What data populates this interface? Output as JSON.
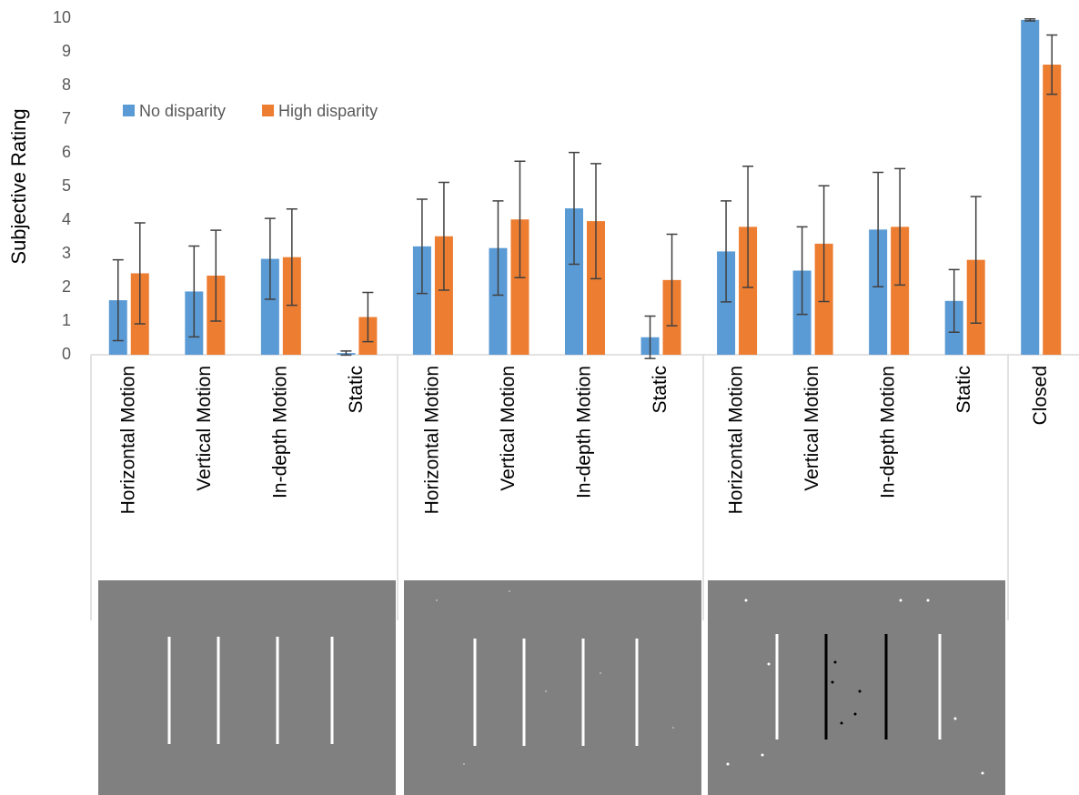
{
  "chart_data": {
    "type": "bar",
    "y_label": "Subjective Rating",
    "categories": [
      "Horizontal Motion",
      "Vertical Motion",
      "In-depth Motion",
      "Static",
      "Horizontal Motion",
      "Vertical Motion",
      "In-depth Motion",
      "Static",
      "Horizontal Motion",
      "Vertical Motion",
      "In-depth Motion",
      "Static",
      "Closed"
    ],
    "series": [
      {
        "name": "No disparity",
        "color": "#5b9bd5",
        "values": [
          1.62,
          1.88,
          2.85,
          0.05,
          3.22,
          3.17,
          4.35,
          0.52,
          3.07,
          2.5,
          3.72,
          1.6,
          9.95
        ],
        "errors": [
          1.2,
          1.35,
          1.2,
          0.06,
          1.4,
          1.4,
          1.66,
          0.63,
          1.5,
          1.3,
          1.7,
          0.93,
          0.03
        ]
      },
      {
        "name": "High disparity",
        "color": "#ed7d31",
        "values": [
          2.42,
          2.35,
          2.9,
          1.12,
          3.52,
          4.02,
          3.97,
          2.22,
          3.8,
          3.3,
          3.8,
          2.82,
          8.62
        ],
        "errors": [
          1.5,
          1.35,
          1.43,
          0.73,
          1.6,
          1.73,
          1.71,
          1.36,
          1.8,
          1.72,
          1.73,
          1.88,
          0.88
        ]
      }
    ],
    "ylim": [
      0,
      10
    ],
    "yticks": [
      0,
      1,
      2,
      3,
      4,
      5,
      6,
      7,
      8,
      9,
      10
    ],
    "grid": false,
    "legend": "upper-left"
  }
}
